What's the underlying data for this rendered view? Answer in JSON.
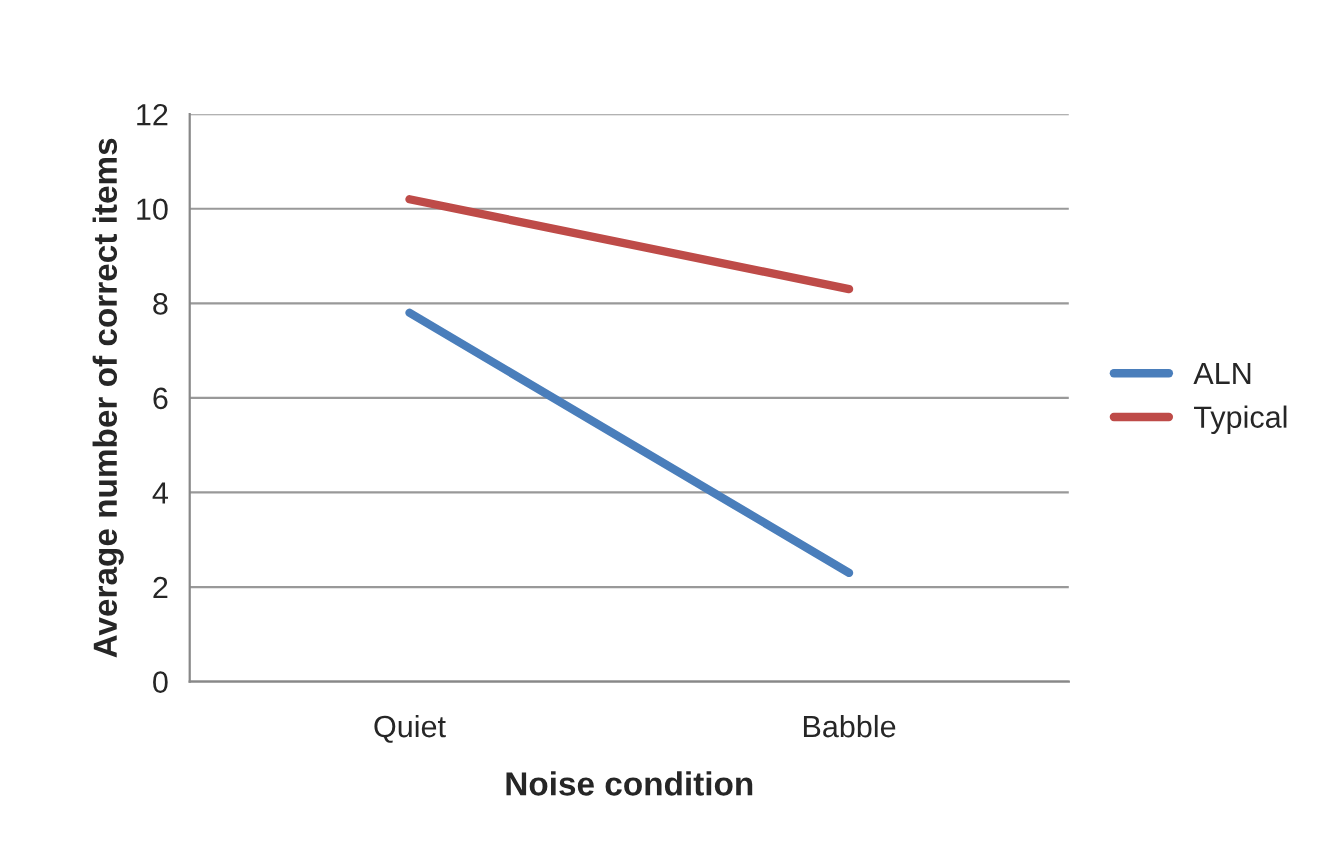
{
  "chart_data": {
    "type": "line",
    "xlabel": "Noise condition",
    "ylabel": "Average number of correct items",
    "categories": [
      "Quiet",
      "Babble"
    ],
    "series": [
      {
        "name": "ALN",
        "color": "#4a7ebb",
        "values": [
          7.8,
          2.3
        ]
      },
      {
        "name": "Typical",
        "color": "#be4b48",
        "values": [
          10.2,
          8.3
        ]
      }
    ],
    "ylim": [
      0,
      12
    ],
    "yticks": [
      0,
      2,
      4,
      6,
      8,
      10,
      12
    ],
    "grid": "y",
    "legend": "right",
    "marker": "none"
  }
}
